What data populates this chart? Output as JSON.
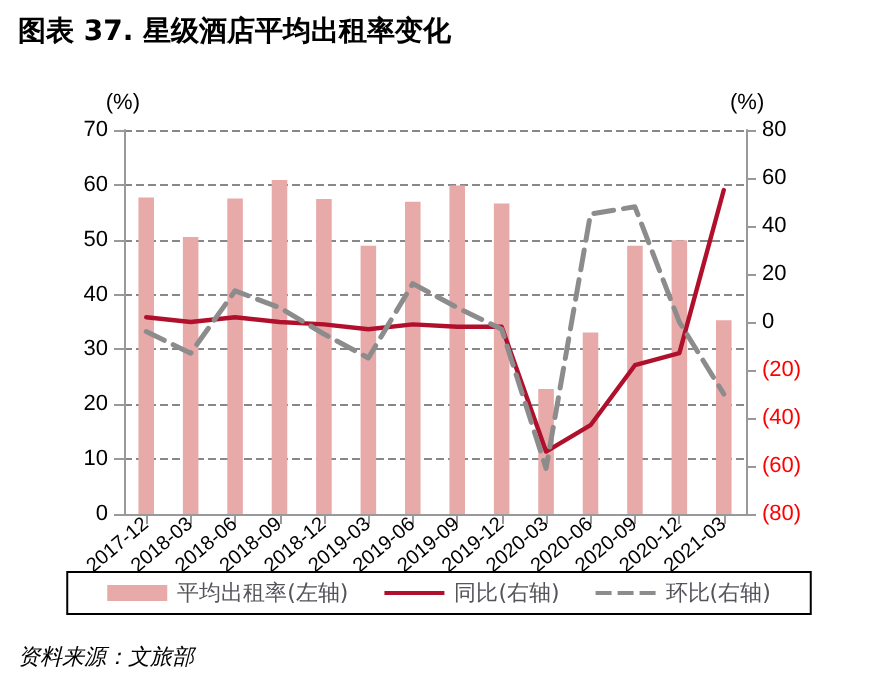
{
  "chart_data": {
    "type": "bar",
    "title": "图表 37. 星级酒店平均出租率变化",
    "categories": [
      "2017-12",
      "2018-03",
      "2018-06",
      "2018-09",
      "2018-12",
      "2019-03",
      "2019-06",
      "2019-09",
      "2019-12",
      "2020-03",
      "2020-06",
      "2020-09",
      "2020-12",
      "2021-03"
    ],
    "series": [
      {
        "name": "平均出租率(左轴)",
        "color": "#e8a9a9",
        "values": [
          57.7,
          50.5,
          57.5,
          60.9,
          57.4,
          48.9,
          56.9,
          59.9,
          56.6,
          22.8,
          33.1,
          48.9,
          49.9,
          35.3
        ]
      },
      {
        "name": "同比(右轴)",
        "type": "line",
        "axis": "y2",
        "color": "#b0102b",
        "line_style": "solid",
        "values": [
          2,
          0,
          2,
          0,
          -1,
          -3,
          -1,
          -2,
          -2,
          -54,
          -43,
          -18,
          -13,
          55
        ]
      },
      {
        "name": "环比(右轴)",
        "type": "line",
        "axis": "y2",
        "color": "#8c8c8c",
        "line_style": "dashed",
        "values": [
          -4,
          -13,
          13,
          6,
          -5,
          -15,
          16,
          6,
          -3,
          -61,
          45,
          48,
          0,
          -30
        ]
      }
    ],
    "ylabel": "(%)",
    "y2label": "(%)",
    "ylim": [
      0,
      70
    ],
    "yticks": [
      0,
      10,
      20,
      30,
      40,
      50,
      60,
      70
    ],
    "y2lim": [
      -80,
      80
    ],
    "y2ticks": [
      {
        "value": -80,
        "label": "(80)"
      },
      {
        "value": -60,
        "label": "(60)"
      },
      {
        "value": -40,
        "label": "(40)"
      },
      {
        "value": -20,
        "label": "(20)"
      },
      0,
      20,
      40,
      60,
      80
    ],
    "grid": "y",
    "legend": "bottom",
    "marker": "none",
    "annotations": [
      "资料来源：文旅部"
    ]
  }
}
